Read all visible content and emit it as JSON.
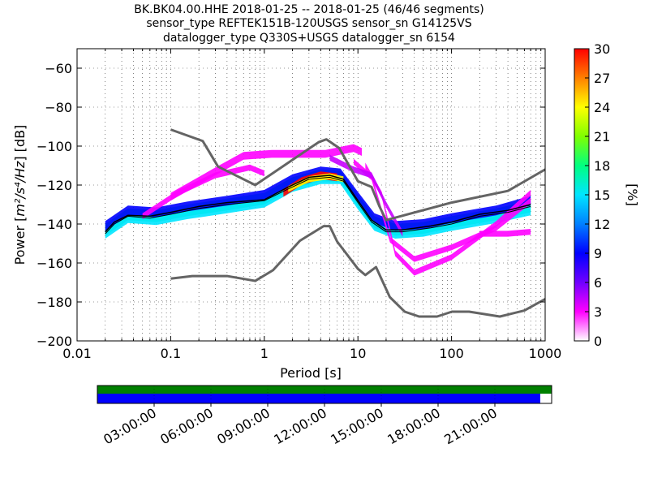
{
  "chart_data": {
    "type": "heatmap",
    "title_lines": [
      "BK.BK04.00.HHE   2018-01-25 -- 2018-01-25  (46/46 segments)",
      "sensor_type REFTEK151B-120USGS sensor_sn G14125VS",
      "datalogger_type Q330S+USGS datalogger_sn 6154"
    ],
    "xlabel": "Period [s]",
    "ylabel_prefix": "Power [",
    "ylabel_unit": "m²/s⁴/Hz",
    "ylabel_suffix": "] [dB]",
    "xscale": "log",
    "xlim": [
      0.01,
      1000
    ],
    "ylim": [
      -200,
      -50
    ],
    "x_ticks": [
      0.01,
      0.1,
      1,
      10,
      100,
      1000
    ],
    "x_tick_labels": [
      "0.01",
      "0.1",
      "1",
      "10",
      "100",
      "1000"
    ],
    "y_ticks": [
      -200,
      -180,
      -160,
      -140,
      -120,
      -100,
      -80,
      -60
    ],
    "y_tick_labels": [
      "−200",
      "−180",
      "−160",
      "−140",
      "−120",
      "−100",
      "−80",
      "−60"
    ],
    "colorbar": {
      "label": "[%]",
      "range": [
        0,
        30
      ],
      "ticks": [
        0,
        3,
        6,
        9,
        12,
        15,
        18,
        21,
        24,
        27,
        30
      ],
      "tick_labels": [
        "0",
        "3",
        "6",
        "9",
        "12",
        "15",
        "18",
        "21",
        "24",
        "27",
        "30"
      ],
      "colors": [
        "#ffffff",
        "#ff00ff",
        "#7000ff",
        "#0000ff",
        "#0080ff",
        "#00e5ff",
        "#00ff80",
        "#80ff00",
        "#ffff00",
        "#ff8000",
        "#ff0000"
      ]
    },
    "noise_models": [
      {
        "name": "high-noise-model",
        "points": [
          [
            0.1,
            -91.5
          ],
          [
            0.22,
            -97.4
          ],
          [
            0.32,
            -110.5
          ],
          [
            0.8,
            -120
          ],
          [
            3.8,
            -98
          ],
          [
            4.6,
            -96.5
          ],
          [
            6.3,
            -101
          ],
          [
            10,
            -118
          ],
          [
            14,
            -121
          ],
          [
            17,
            -131
          ],
          [
            20,
            -138
          ],
          [
            100,
            -129
          ],
          [
            400,
            -123
          ],
          [
            1000,
            -112
          ]
        ]
      },
      {
        "name": "low-noise-model",
        "points": [
          [
            0.1,
            -168
          ],
          [
            0.17,
            -166.7
          ],
          [
            0.4,
            -166.7
          ],
          [
            0.8,
            -169.2
          ],
          [
            1.24,
            -163.7
          ],
          [
            2.4,
            -148.6
          ],
          [
            4.3,
            -141.1
          ],
          [
            5.0,
            -141.1
          ],
          [
            6.0,
            -149.0
          ],
          [
            10,
            -163
          ],
          [
            12,
            -166.2
          ],
          [
            15.6,
            -162.1
          ],
          [
            21.9,
            -177.5
          ],
          [
            31.6,
            -185
          ],
          [
            45,
            -187.5
          ],
          [
            70,
            -187.5
          ],
          [
            101,
            -185
          ],
          [
            154,
            -185
          ],
          [
            328,
            -187.5
          ],
          [
            600,
            -184.4
          ],
          [
            1000,
            -178.5
          ]
        ]
      }
    ],
    "mean_curve": [
      [
        0.02,
        -144
      ],
      [
        0.025,
        -139
      ],
      [
        0.035,
        -135.5
      ],
      [
        0.06,
        -136
      ],
      [
        0.1,
        -134
      ],
      [
        0.2,
        -131
      ],
      [
        0.4,
        -129
      ],
      [
        1.0,
        -127.5
      ],
      [
        1.8,
        -121
      ],
      [
        3.0,
        -116
      ],
      [
        5.0,
        -115
      ],
      [
        7.0,
        -117
      ],
      [
        10,
        -128
      ],
      [
        14,
        -138
      ],
      [
        20,
        -143
      ],
      [
        30,
        -143
      ],
      [
        60,
        -141
      ],
      [
        100,
        -139
      ],
      [
        200,
        -135
      ],
      [
        400,
        -133
      ],
      [
        700,
        -130
      ]
    ],
    "mode_curve": [
      [
        0.02,
        -145
      ],
      [
        0.025,
        -140
      ],
      [
        0.035,
        -136
      ],
      [
        0.06,
        -137
      ],
      [
        0.1,
        -135
      ],
      [
        0.2,
        -132
      ],
      [
        0.4,
        -130
      ],
      [
        1.0,
        -128
      ],
      [
        1.8,
        -122
      ],
      [
        3.0,
        -117
      ],
      [
        5.0,
        -116
      ],
      [
        7.0,
        -118
      ],
      [
        10,
        -129
      ],
      [
        14,
        -139
      ],
      [
        20,
        -144
      ],
      [
        30,
        -144
      ],
      [
        60,
        -142
      ],
      [
        100,
        -140
      ],
      [
        200,
        -136
      ],
      [
        400,
        -134
      ],
      [
        700,
        -131
      ]
    ],
    "heatmap_bands": [
      {
        "points": [
          [
            0.02,
            -143
          ],
          [
            0.035,
            -135
          ],
          [
            0.07,
            -136
          ],
          [
            0.15,
            -133
          ],
          [
            0.4,
            -130
          ],
          [
            1.0,
            -127
          ],
          [
            2.0,
            -119
          ],
          [
            4.0,
            -115
          ],
          [
            6.5,
            -115.5
          ],
          [
            10,
            -128
          ],
          [
            15,
            -139
          ],
          [
            25,
            -143
          ],
          [
            50,
            -142
          ],
          [
            100,
            -139
          ],
          [
            300,
            -135
          ],
          [
            700,
            -131
          ]
        ],
        "halfwidth": 3,
        "color": "#00ff80"
      },
      {
        "points": [
          [
            0.02,
            -145
          ],
          [
            0.035,
            -137
          ],
          [
            0.07,
            -138
          ],
          [
            0.15,
            -135
          ],
          [
            0.4,
            -132
          ],
          [
            1.0,
            -129
          ],
          [
            2.0,
            -121
          ],
          [
            4.0,
            -117
          ],
          [
            6.5,
            -117
          ],
          [
            10,
            -130
          ],
          [
            15,
            -141
          ],
          [
            25,
            -145
          ],
          [
            50,
            -144
          ],
          [
            100,
            -141
          ],
          [
            300,
            -137
          ],
          [
            700,
            -133
          ]
        ],
        "halfwidth": 2.5,
        "color": "#00e5ff"
      },
      {
        "points": [
          [
            0.02,
            -141
          ],
          [
            0.035,
            -133
          ],
          [
            0.07,
            -134
          ],
          [
            0.15,
            -131
          ],
          [
            0.4,
            -128
          ],
          [
            1.0,
            -125
          ],
          [
            2.0,
            -117
          ],
          [
            4.0,
            -113
          ],
          [
            6.5,
            -114
          ],
          [
            10,
            -126
          ],
          [
            15,
            -137
          ],
          [
            25,
            -141
          ],
          [
            50,
            -140
          ],
          [
            100,
            -137
          ],
          [
            300,
            -133
          ],
          [
            700,
            -128
          ]
        ],
        "halfwidth": 2.5,
        "color": "#0000ff"
      },
      {
        "points": [
          [
            1.6,
            -124
          ],
          [
            2.5,
            -118
          ],
          [
            4,
            -115
          ],
          [
            6,
            -116
          ]
        ],
        "halfwidth": 2,
        "color": "#ff0000"
      },
      {
        "points": [
          [
            1.8,
            -122
          ],
          [
            3,
            -117
          ],
          [
            5,
            -115.5
          ],
          [
            7,
            -117
          ]
        ],
        "halfwidth": 1.5,
        "color": "#ffff00"
      },
      {
        "points": [
          [
            0.1,
            -126
          ],
          [
            0.3,
            -113
          ],
          [
            0.6,
            -105
          ],
          [
            1.2,
            -104
          ],
          [
            2.5,
            -104
          ],
          [
            4.5,
            -104
          ],
          [
            9,
            -101
          ],
          [
            11,
            -103
          ]
        ],
        "halfwidth": 2,
        "color": "#ff00ff"
      },
      {
        "points": [
          [
            0.05,
            -136
          ],
          [
            0.12,
            -124
          ],
          [
            0.3,
            -115
          ],
          [
            0.7,
            -111
          ],
          [
            1.0,
            -114
          ]
        ],
        "halfwidth": 1.5,
        "color": "#ff00ff"
      },
      {
        "points": [
          [
            9,
            -108
          ],
          [
            14,
            -116
          ],
          [
            22,
            -148
          ],
          [
            40,
            -158
          ],
          [
            100,
            -152
          ],
          [
            300,
            -142
          ],
          [
            700,
            -128
          ]
        ],
        "halfwidth": 1.5,
        "color": "#ff00ff"
      },
      {
        "points": [
          [
            12,
            -110
          ],
          [
            18,
            -125
          ],
          [
            25,
            -155
          ],
          [
            40,
            -165
          ],
          [
            100,
            -157
          ],
          [
            300,
            -140
          ],
          [
            700,
            -124
          ]
        ],
        "halfwidth": 1.5,
        "color": "#ff00ff"
      },
      {
        "points": [
          [
            5,
            -106
          ],
          [
            9,
            -112
          ],
          [
            14,
            -115
          ],
          [
            20,
            -130
          ],
          [
            30,
            -145
          ]
        ],
        "halfwidth": 1.5,
        "color": "#c800ff"
      },
      {
        "points": [
          [
            200,
            -145
          ],
          [
            400,
            -145
          ],
          [
            700,
            -144
          ]
        ],
        "halfwidth": 1.5,
        "color": "#ff00ff"
      }
    ],
    "timeline": {
      "tick_labels": [
        "03:00:00",
        "06:00:00",
        "09:00:00",
        "12:00:00",
        "15:00:00",
        "18:00:00",
        "21:00:00"
      ],
      "tick_hours": [
        3,
        6,
        9,
        12,
        15,
        18,
        21
      ],
      "span_hours": [
        0,
        24
      ],
      "data_coverage_fraction": 1.0,
      "psd_coverage_fraction": 0.975,
      "data_color": "#008000",
      "psd_color": "#0000ff"
    }
  }
}
